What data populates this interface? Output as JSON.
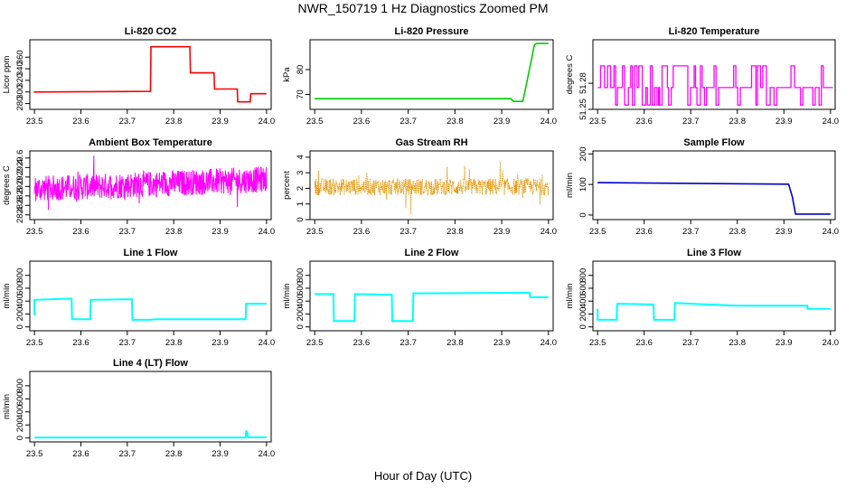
{
  "figure": {
    "title": "NWR_150719  1 Hz Diagnostics Zoomed PM",
    "xlabel": "Hour of Day (UTC)"
  },
  "chart_data": [
    {
      "type": "line",
      "title": "Li-820 CO2",
      "ylabel": "Licor ppm",
      "color": "#ff0000",
      "xlim": [
        23.49,
        24.01
      ],
      "ylim": [
        270,
        390
      ],
      "xticks": [
        "23.5",
        "23.6",
        "23.7",
        "23.8",
        "23.9",
        "24.0"
      ],
      "yticks": [
        "280",
        "300",
        "320",
        "340",
        "360"
      ],
      "series": [
        {
          "x": [
            23.5,
            23.5,
            23.75,
            23.751,
            23.835,
            23.836,
            23.887,
            23.888,
            23.937,
            23.938,
            23.965,
            23.966,
            24.0
          ],
          "y": [
            301,
            300,
            301,
            378,
            378,
            333,
            333,
            305,
            305,
            283,
            283,
            297,
            297
          ]
        }
      ]
    },
    {
      "type": "line",
      "title": "Li-820 Pressure",
      "ylabel": "kPa",
      "color": "#00cc00",
      "xlim": [
        23.49,
        24.01
      ],
      "ylim": [
        64,
        92
      ],
      "xticks": [
        "23.5",
        "23.6",
        "23.7",
        "23.8",
        "23.9",
        "24.0"
      ],
      "yticks": [
        "70",
        "80"
      ],
      "series": [
        {
          "x": [
            23.5,
            23.92,
            23.925,
            23.945,
            23.955,
            23.97,
            23.975,
            24.0
          ],
          "y": [
            68.3,
            68.3,
            67.2,
            67.2,
            76,
            90,
            90.5,
            90.5
          ]
        }
      ]
    },
    {
      "type": "line",
      "title": "Li-820 Temperature",
      "ylabel": "degrees C",
      "color": "#ff00ff",
      "xlim": [
        23.49,
        24.01
      ],
      "ylim": [
        51.25,
        51.33
      ],
      "xticks": [
        "23.5",
        "23.6",
        "23.7",
        "23.8",
        "23.9",
        "24.0"
      ],
      "yticks": [
        "51.25",
        "51.28"
      ],
      "levels": [
        51.255,
        51.275,
        51.3
      ],
      "series": []
    },
    {
      "type": "line",
      "title": "Ambient Box Temperature",
      "ylabel": "degrees C",
      "color": "#ff00ff",
      "xlim": [
        23.49,
        24.01
      ],
      "ylim": [
        28.3,
        29.75
      ],
      "xticks": [
        "23.5",
        "23.6",
        "23.7",
        "23.8",
        "23.9",
        "24.0"
      ],
      "yticks": [
        "28.4",
        "28.6",
        "28.8",
        "29.0",
        "29.2",
        "29.4",
        "29.6"
      ],
      "series": [
        {
          "x": [
            23.5,
            24.0
          ],
          "y": [
            28.95,
            29.15
          ]
        }
      ]
    },
    {
      "type": "line",
      "title": "Gas Stream RH",
      "ylabel": "percent",
      "color": "#e59400",
      "xlim": [
        23.49,
        24.01
      ],
      "ylim": [
        0,
        4.4
      ],
      "xticks": [
        "23.5",
        "23.6",
        "23.7",
        "23.8",
        "23.9",
        "24.0"
      ],
      "yticks": [
        "0",
        "1",
        "2",
        "3",
        "4"
      ],
      "series": [
        {
          "x": [
            23.5,
            24.0
          ],
          "y": [
            2.1,
            2.1
          ]
        }
      ]
    },
    {
      "type": "line",
      "title": "Sample Flow",
      "ylabel": "ml/min",
      "color": "#0000cc",
      "xlim": [
        23.49,
        24.01
      ],
      "ylim": [
        -15,
        210
      ],
      "xticks": [
        "23.5",
        "23.6",
        "23.7",
        "23.8",
        "23.9",
        "24.0"
      ],
      "yticks": [
        "0",
        "100",
        "200"
      ],
      "series": [
        {
          "x": [
            23.5,
            23.91,
            23.918,
            23.925,
            24.0
          ],
          "y": [
            106,
            101,
            60,
            3,
            3
          ]
        }
      ]
    },
    {
      "type": "line",
      "title": "Line 1 Flow",
      "ylabel": "ml/min",
      "color": "#00ffff",
      "xlim": [
        23.49,
        24.01
      ],
      "ylim": [
        -60,
        1020
      ],
      "xticks": [
        "23.5",
        "23.6",
        "23.7",
        "23.8",
        "23.9",
        "24.0"
      ],
      "yticks": [
        "0",
        "200",
        "400",
        "600",
        "800"
      ],
      "series": [
        {
          "x": [
            23.5,
            23.5,
            23.58,
            23.581,
            23.62,
            23.621,
            23.71,
            23.711,
            23.75,
            23.76,
            23.955,
            23.956,
            24.0
          ],
          "y": [
            180,
            420,
            440,
            120,
            120,
            420,
            430,
            110,
            110,
            120,
            120,
            360,
            360
          ]
        }
      ]
    },
    {
      "type": "line",
      "title": "Line 2 Flow",
      "ylabel": "ml/min",
      "color": "#00ffff",
      "xlim": [
        23.49,
        24.01
      ],
      "ylim": [
        -60,
        1020
      ],
      "xticks": [
        "23.5",
        "23.6",
        "23.7",
        "23.8",
        "23.9",
        "24.0"
      ],
      "yticks": [
        "0",
        "200",
        "400",
        "600",
        "800"
      ],
      "series": [
        {
          "x": [
            23.5,
            23.54,
            23.541,
            23.585,
            23.586,
            23.665,
            23.666,
            23.71,
            23.711,
            23.96,
            23.961,
            24.0
          ],
          "y": [
            510,
            510,
            90,
            90,
            510,
            500,
            90,
            90,
            520,
            530,
            460,
            460
          ]
        }
      ]
    },
    {
      "type": "line",
      "title": "Line 3 Flow",
      "ylabel": "ml/min",
      "color": "#00ffff",
      "xlim": [
        23.49,
        24.01
      ],
      "ylim": [
        -60,
        1020
      ],
      "xticks": [
        "23.5",
        "23.6",
        "23.7",
        "23.8",
        "23.9",
        "24.0"
      ],
      "yticks": [
        "0",
        "200",
        "400",
        "600",
        "800"
      ],
      "series": [
        {
          "x": [
            23.5,
            23.5,
            23.541,
            23.542,
            23.62,
            23.621,
            23.665,
            23.666,
            23.8,
            23.95,
            23.951,
            24.0
          ],
          "y": [
            280,
            110,
            110,
            360,
            350,
            110,
            110,
            370,
            330,
            330,
            280,
            280
          ]
        }
      ]
    },
    {
      "type": "line",
      "title": "Line 4 (LT) Flow",
      "ylabel": "ml/min",
      "color": "#00ffff",
      "xlim": [
        23.49,
        24.01
      ],
      "ylim": [
        -60,
        1020
      ],
      "xticks": [
        "23.5",
        "23.6",
        "23.7",
        "23.8",
        "23.9",
        "24.0"
      ],
      "yticks": [
        "0",
        "200",
        "400",
        "600",
        "800"
      ],
      "series": [
        {
          "x": [
            23.5,
            23.955,
            23.956,
            23.958,
            23.96,
            24.0
          ],
          "y": [
            8,
            8,
            100,
            100,
            10,
            10
          ]
        }
      ]
    }
  ]
}
